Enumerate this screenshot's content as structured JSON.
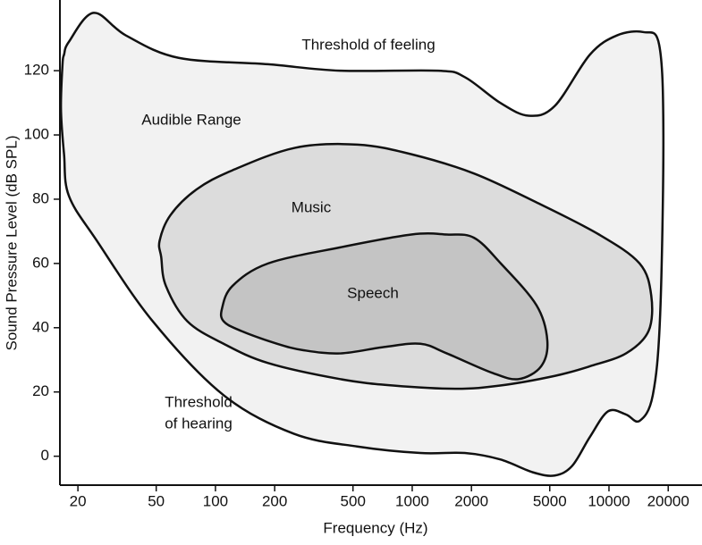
{
  "chart_data": {
    "type": "region",
    "xlabel": "Frequency (Hz)",
    "ylabel": "Sound Pressure Level (dB SPL)",
    "xscale": "log",
    "xlim": [
      16.2,
      29700
    ],
    "ylim": [
      -9,
      142
    ],
    "xticks": [
      20,
      50,
      100,
      200,
      500,
      1000,
      2000,
      5000,
      10000,
      20000
    ],
    "yticks": [
      0,
      20,
      40,
      60,
      80,
      100,
      120
    ],
    "series": [
      {
        "name": "Audible Range",
        "color": "#f2f2f2",
        "x": [
          17,
          18,
          24,
          35,
          65,
          185,
          430,
          1350,
          1850,
          2800,
          3900,
          5300,
          8000,
          11000,
          15000,
          18000,
          18900,
          18200,
          16700,
          14300,
          12200,
          9900,
          8000,
          6500,
          5300,
          4100,
          2800,
          1850,
          1100,
          530,
          250,
          110,
          48,
          25,
          18,
          17,
          16.4,
          16.7
        ],
        "values": [
          125,
          129,
          138,
          131,
          124,
          122,
          120,
          120,
          118,
          110,
          106,
          109,
          125,
          131,
          132,
          128,
          100,
          44,
          19,
          11,
          13,
          14,
          6,
          -3,
          -6,
          -5,
          -1,
          1,
          1,
          3,
          7,
          19,
          42,
          67,
          81,
          94,
          108,
          122
        ]
      },
      {
        "name": "Music",
        "color": "#dcdcdc",
        "x": [
          53,
          52,
          59,
          80,
          122,
          254,
          528,
          990,
          2060,
          4280,
          8900,
          14300,
          16400,
          15900,
          12200,
          8000,
          5300,
          2800,
          1670,
          800,
          430,
          185,
          110,
          72,
          56
        ],
        "values": [
          62,
          67,
          75,
          83,
          89,
          96,
          97,
          94,
          88,
          79,
          69,
          60,
          50,
          39,
          32,
          28,
          25,
          22,
          21,
          22,
          24,
          29,
          35,
          42,
          53
        ]
      },
      {
        "name": "Speech",
        "color": "#c4c4c4",
        "x": [
          108,
          122,
          185,
          430,
          990,
          1500,
          2060,
          2820,
          4280,
          4860,
          4520,
          3470,
          2540,
          1500,
          1100,
          720,
          430,
          280,
          206,
          135,
          110
        ],
        "values": [
          46,
          53,
          60,
          65,
          69,
          69,
          68,
          60,
          47,
          36,
          28,
          24,
          26,
          32,
          35,
          34,
          32,
          33,
          35,
          39,
          42
        ]
      }
    ],
    "annotations": [
      [
        "Threshold of feeling"
      ],
      [
        "Threshold",
        "of hearing"
      ]
    ]
  }
}
